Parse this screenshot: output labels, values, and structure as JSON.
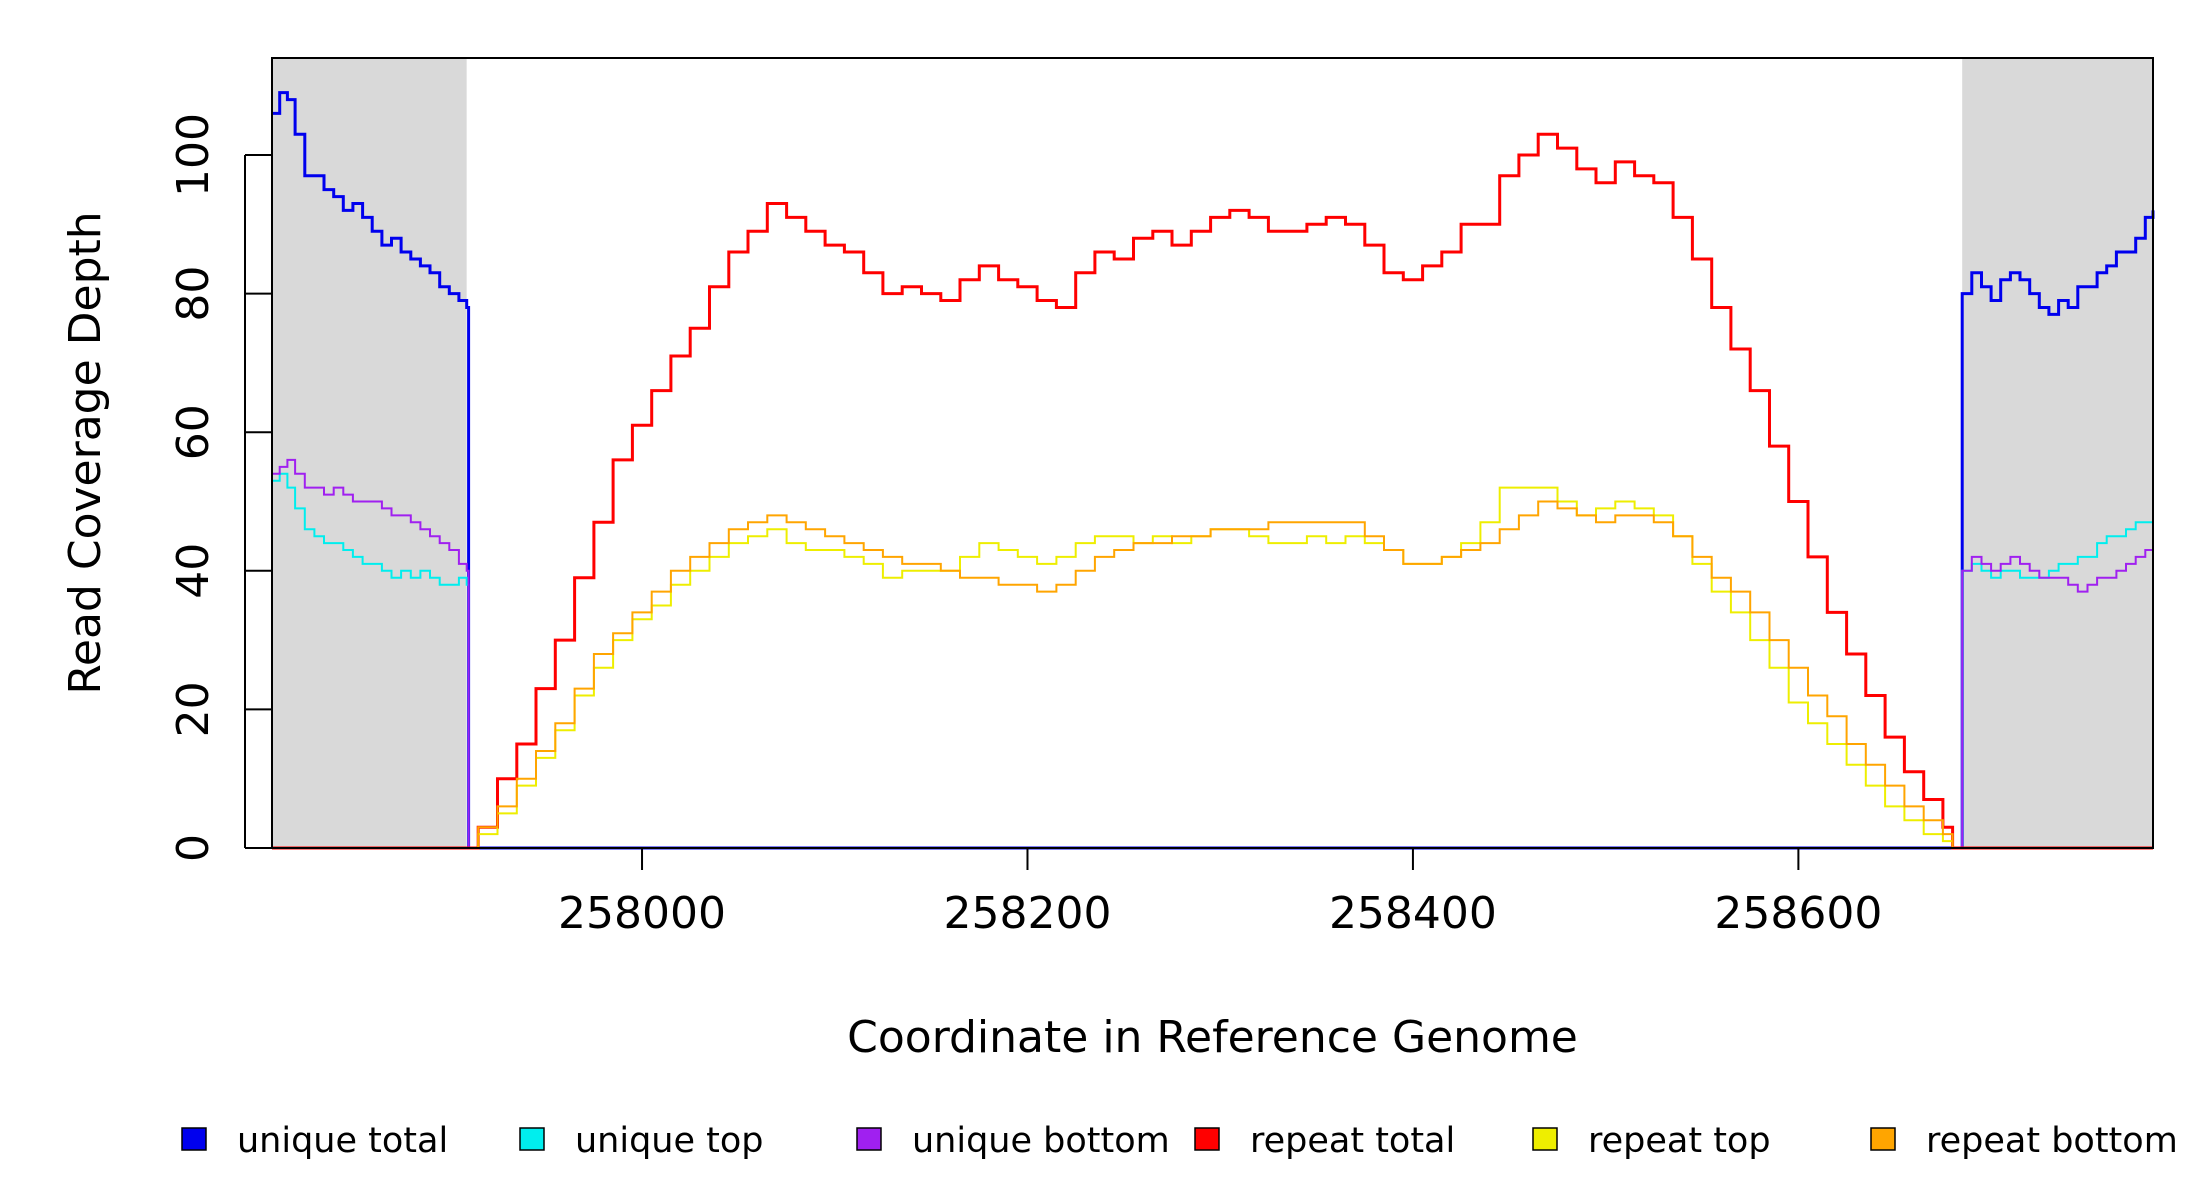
{
  "chart_data": {
    "type": "line",
    "title": "",
    "xlabel": "Coordinate in Reference Genome",
    "ylabel": "Read Coverage Depth",
    "xlim": [
      257808,
      258784
    ],
    "ylim": [
      0,
      114
    ],
    "x_ticks": [
      258000,
      258200,
      258400,
      258600
    ],
    "x_tick_labels": [
      "258000",
      "258200",
      "258400",
      "258600"
    ],
    "y_ticks": [
      0,
      20,
      40,
      60,
      80,
      100
    ],
    "y_tick_labels": [
      "0",
      "20",
      "40",
      "60",
      "80",
      "100"
    ],
    "shaded_regions": [
      [
        257808,
        257909
      ],
      [
        258685,
        258784
      ]
    ],
    "shade_color": "#d9d9d9",
    "grid": false,
    "legend_position": "bottom",
    "series": [
      {
        "name": "unique total",
        "color": "#0000ee",
        "x": [
          257808,
          257812,
          257816,
          257820,
          257825,
          257830,
          257835,
          257840,
          257845,
          257850,
          257855,
          257860,
          257865,
          257870,
          257875,
          257880,
          257885,
          257890,
          257895,
          257900,
          257905,
          257909,
          257910,
          258684,
          258685,
          258690,
          258695,
          258700,
          258705,
          258710,
          258715,
          258720,
          258725,
          258730,
          258735,
          258740,
          258745,
          258750,
          258755,
          258760,
          258765,
          258770,
          258775,
          258780,
          258784
        ],
        "y": [
          106,
          109,
          108,
          103,
          97,
          97,
          95,
          94,
          92,
          93,
          91,
          89,
          87,
          88,
          86,
          85,
          84,
          83,
          81,
          80,
          79,
          78,
          0,
          0,
          80,
          83,
          81,
          79,
          82,
          83,
          82,
          80,
          78,
          77,
          79,
          78,
          81,
          81,
          83,
          84,
          86,
          86,
          88,
          91,
          92
        ]
      },
      {
        "name": "unique top",
        "color": "#00eeee",
        "x": [
          257808,
          257812,
          257816,
          257820,
          257825,
          257830,
          257835,
          257840,
          257845,
          257850,
          257855,
          257860,
          257865,
          257870,
          257875,
          257880,
          257885,
          257890,
          257895,
          257900,
          257905,
          257909,
          257910,
          258684,
          258685,
          258690,
          258695,
          258700,
          258705,
          258710,
          258715,
          258720,
          258725,
          258730,
          258735,
          258740,
          258745,
          258750,
          258755,
          258760,
          258765,
          258770,
          258775,
          258780,
          258784
        ],
        "y": [
          53,
          54,
          52,
          49,
          46,
          45,
          44,
          44,
          43,
          42,
          41,
          41,
          40,
          39,
          40,
          39,
          40,
          39,
          38,
          38,
          39,
          38,
          0,
          0,
          40,
          41,
          40,
          39,
          40,
          40,
          39,
          39,
          39,
          40,
          41,
          41,
          42,
          42,
          44,
          45,
          45,
          46,
          47,
          47,
          47
        ]
      },
      {
        "name": "unique bottom",
        "color": "#a020f0",
        "x": [
          257808,
          257812,
          257816,
          257820,
          257825,
          257830,
          257835,
          257840,
          257845,
          257850,
          257855,
          257860,
          257865,
          257870,
          257875,
          257880,
          257885,
          257890,
          257895,
          257900,
          257905,
          257909,
          257910,
          258684,
          258685,
          258690,
          258695,
          258700,
          258705,
          258710,
          258715,
          258720,
          258725,
          258730,
          258735,
          258740,
          258745,
          258750,
          258755,
          258760,
          258765,
          258770,
          258775,
          258780,
          258784
        ],
        "y": [
          54,
          55,
          56,
          54,
          52,
          52,
          51,
          52,
          51,
          50,
          50,
          50,
          49,
          48,
          48,
          47,
          46,
          45,
          44,
          43,
          41,
          40,
          0,
          0,
          40,
          42,
          41,
          40,
          41,
          42,
          41,
          40,
          39,
          39,
          39,
          38,
          37,
          38,
          39,
          39,
          40,
          41,
          42,
          43,
          45
        ]
      },
      {
        "name": "repeat total",
        "color": "#ff0000",
        "x": [
          257808,
          257909,
          257915,
          257925,
          257935,
          257945,
          257955,
          257965,
          257975,
          257985,
          257995,
          258005,
          258015,
          258025,
          258035,
          258045,
          258055,
          258065,
          258075,
          258085,
          258095,
          258105,
          258115,
          258125,
          258135,
          258145,
          258155,
          258165,
          258175,
          258185,
          258195,
          258205,
          258215,
          258225,
          258235,
          258245,
          258255,
          258265,
          258275,
          258285,
          258295,
          258305,
          258315,
          258325,
          258335,
          258345,
          258355,
          258365,
          258375,
          258385,
          258395,
          258405,
          258415,
          258425,
          258435,
          258445,
          258455,
          258465,
          258475,
          258485,
          258495,
          258505,
          258515,
          258525,
          258535,
          258545,
          258555,
          258565,
          258575,
          258585,
          258595,
          258605,
          258615,
          258625,
          258635,
          258645,
          258655,
          258665,
          258675,
          258680,
          258784
        ],
        "y": [
          0,
          0,
          3,
          10,
          15,
          23,
          30,
          39,
          47,
          56,
          61,
          66,
          71,
          75,
          81,
          86,
          89,
          93,
          91,
          89,
          87,
          86,
          83,
          80,
          81,
          80,
          79,
          82,
          84,
          82,
          81,
          79,
          78,
          83,
          86,
          85,
          88,
          89,
          87,
          89,
          91,
          92,
          91,
          89,
          89,
          90,
          91,
          90,
          87,
          83,
          82,
          84,
          86,
          90,
          90,
          97,
          100,
          103,
          101,
          98,
          96,
          99,
          97,
          96,
          91,
          85,
          78,
          72,
          66,
          58,
          50,
          42,
          34,
          28,
          22,
          16,
          11,
          7,
          3,
          0,
          0
        ]
      },
      {
        "name": "repeat top",
        "color": "#eeee00",
        "x": [
          257808,
          257909,
          257915,
          257925,
          257935,
          257945,
          257955,
          257965,
          257975,
          257985,
          257995,
          258005,
          258015,
          258025,
          258035,
          258045,
          258055,
          258065,
          258075,
          258085,
          258095,
          258105,
          258115,
          258125,
          258135,
          258145,
          258155,
          258165,
          258175,
          258185,
          258195,
          258205,
          258215,
          258225,
          258235,
          258245,
          258255,
          258265,
          258275,
          258285,
          258295,
          258305,
          258315,
          258325,
          258335,
          258345,
          258355,
          258365,
          258375,
          258385,
          258395,
          258405,
          258415,
          258425,
          258435,
          258445,
          258455,
          258465,
          258475,
          258485,
          258495,
          258505,
          258515,
          258525,
          258535,
          258545,
          258555,
          258565,
          258575,
          258585,
          258595,
          258605,
          258615,
          258625,
          258635,
          258645,
          258655,
          258665,
          258675,
          258680,
          258784
        ],
        "y": [
          0,
          0,
          2,
          5,
          9,
          13,
          17,
          22,
          26,
          30,
          33,
          35,
          38,
          40,
          42,
          44,
          45,
          46,
          44,
          43,
          43,
          42,
          41,
          39,
          40,
          40,
          40,
          42,
          44,
          43,
          42,
          41,
          42,
          44,
          45,
          45,
          44,
          45,
          44,
          45,
          46,
          46,
          45,
          44,
          44,
          45,
          44,
          45,
          44,
          43,
          41,
          41,
          42,
          44,
          47,
          52,
          52,
          52,
          50,
          48,
          49,
          50,
          49,
          48,
          45,
          41,
          37,
          34,
          30,
          26,
          21,
          18,
          15,
          12,
          9,
          6,
          4,
          2,
          1,
          0,
          0
        ]
      },
      {
        "name": "repeat bottom",
        "color": "#ffa500",
        "x": [
          257808,
          257909,
          257915,
          257925,
          257935,
          257945,
          257955,
          257965,
          257975,
          257985,
          257995,
          258005,
          258015,
          258025,
          258035,
          258045,
          258055,
          258065,
          258075,
          258085,
          258095,
          258105,
          258115,
          258125,
          258135,
          258145,
          258155,
          258165,
          258175,
          258185,
          258195,
          258205,
          258215,
          258225,
          258235,
          258245,
          258255,
          258265,
          258275,
          258285,
          258295,
          258305,
          258315,
          258325,
          258335,
          258345,
          258355,
          258365,
          258375,
          258385,
          258395,
          258405,
          258415,
          258425,
          258435,
          258445,
          258455,
          258465,
          258475,
          258485,
          258495,
          258505,
          258515,
          258525,
          258535,
          258545,
          258555,
          258565,
          258575,
          258585,
          258595,
          258605,
          258615,
          258625,
          258635,
          258645,
          258655,
          258665,
          258675,
          258680,
          258784
        ],
        "y": [
          0,
          0,
          3,
          6,
          10,
          14,
          18,
          23,
          28,
          31,
          34,
          37,
          40,
          42,
          44,
          46,
          47,
          48,
          47,
          46,
          45,
          44,
          43,
          42,
          41,
          41,
          40,
          39,
          39,
          38,
          38,
          37,
          38,
          40,
          42,
          43,
          44,
          44,
          45,
          45,
          46,
          46,
          46,
          47,
          47,
          47,
          47,
          47,
          45,
          43,
          41,
          41,
          42,
          43,
          44,
          46,
          48,
          50,
          49,
          48,
          47,
          48,
          48,
          47,
          45,
          42,
          39,
          37,
          34,
          30,
          26,
          22,
          19,
          15,
          12,
          9,
          6,
          4,
          2,
          0,
          0
        ]
      }
    ]
  }
}
